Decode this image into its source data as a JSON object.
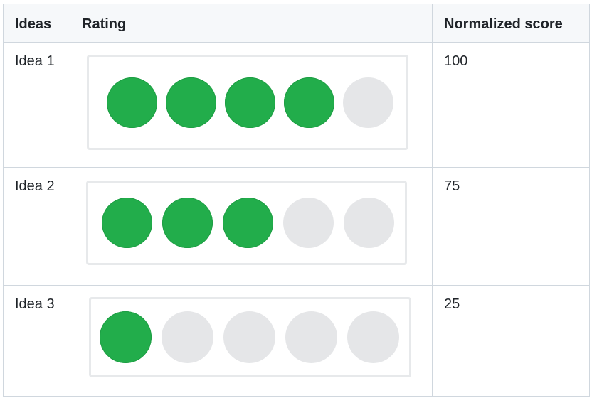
{
  "table": {
    "headers": {
      "ideas": "Ideas",
      "rating": "Rating",
      "score": "Normalized score"
    },
    "rows": [
      {
        "idea": "Idea 1",
        "rating": 4,
        "max_rating": 5,
        "score": "100"
      },
      {
        "idea": "Idea 2",
        "rating": 3,
        "max_rating": 5,
        "score": "75"
      },
      {
        "idea": "Idea 3",
        "rating": 1,
        "max_rating": 5,
        "score": "25"
      }
    ]
  },
  "colors": {
    "filled": "#22ad4b",
    "empty": "#e5e6e8",
    "border": "#d0d7de",
    "header_bg": "#f6f8fa"
  }
}
